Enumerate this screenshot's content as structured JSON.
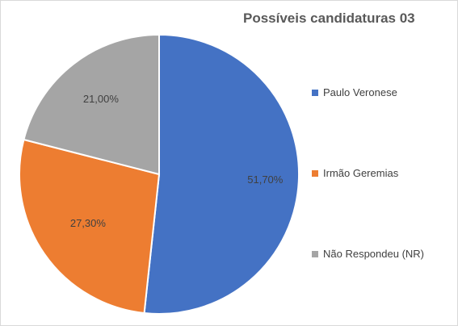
{
  "chart_data": {
    "type": "pie",
    "title": "Possíveis candidaturas 03",
    "categories": [
      "Paulo Veronese",
      "Irmão Geremias",
      "Não Respondeu (NR)"
    ],
    "values": [
      51.7,
      27.3,
      21.0
    ],
    "data_labels": [
      "51,70%",
      "27,30%",
      "21,00%"
    ],
    "colors": [
      "#4472c4",
      "#ed7d31",
      "#a5a5a5"
    ],
    "legend_position": "right",
    "start_angle": "12 o'clock, clockwise"
  }
}
